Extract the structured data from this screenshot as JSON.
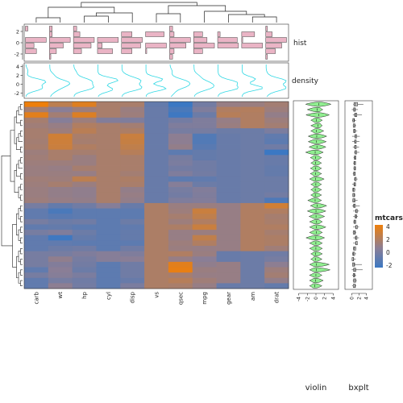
{
  "chart_data": {
    "type": "heatmap",
    "dataset": "mtcars",
    "columns": [
      "carb",
      "wt",
      "hp",
      "cyl",
      "disp",
      "vs",
      "qsec",
      "mpg",
      "gear",
      "am",
      "drat"
    ],
    "rows": [
      [
        3.2,
        1.6,
        2.7,
        1.0,
        1.0,
        -1.0,
        -2.1,
        -0.6,
        0.4,
        0.5,
        0.8
      ],
      [
        0.8,
        0.0,
        0.6,
        1.0,
        0.5,
        -0.9,
        -1.7,
        -0.3,
        1.2,
        1.3,
        0.6
      ],
      [
        2.8,
        0.8,
        2.6,
        1.0,
        0.6,
        -0.9,
        -2.0,
        -0.8,
        1.4,
        1.2,
        0.3
      ],
      [
        0.9,
        -0.1,
        0.6,
        -0.2,
        -0.3,
        -0.9,
        -0.6,
        -0.3,
        0.4,
        1.2,
        0.6
      ],
      [
        0.7,
        0.4,
        1.2,
        1.0,
        0.8,
        -0.9,
        -0.3,
        -0.3,
        0.5,
        1.2,
        0.8
      ],
      [
        0.9,
        0.6,
        1.5,
        1.0,
        1.1,
        -0.9,
        -0.5,
        -0.5,
        -0.8,
        -0.8,
        -0.4
      ],
      [
        0.9,
        2.2,
        1.0,
        1.0,
        2.0,
        -0.9,
        0.1,
        -1.5,
        -0.9,
        -0.8,
        -1.1
      ],
      [
        0.8,
        2.1,
        0.9,
        1.0,
        1.9,
        -0.9,
        0.1,
        -1.5,
        -0.9,
        -0.8,
        -1.2
      ],
      [
        0.9,
        2.0,
        1.2,
        1.0,
        1.7,
        -0.9,
        0.3,
        -1.3,
        -0.9,
        -0.8,
        -0.7
      ],
      [
        0.6,
        1.0,
        0.9,
        1.0,
        1.4,
        -0.9,
        -1.2,
        -1.0,
        -0.9,
        -0.8,
        -2.1
      ],
      [
        0.7,
        1.0,
        0.5,
        1.0,
        1.0,
        -0.9,
        -0.5,
        -1.0,
        -0.9,
        -0.8,
        -0.9
      ],
      [
        0.6,
        0.6,
        0.5,
        1.0,
        1.0,
        -0.9,
        -0.4,
        -0.7,
        -0.9,
        -0.8,
        -0.9
      ],
      [
        0.5,
        0.4,
        0.9,
        1.0,
        1.0,
        -0.9,
        -0.6,
        -0.7,
        -0.9,
        -0.8,
        -1.0
      ],
      [
        0.5,
        0.5,
        0.4,
        1.0,
        0.8,
        -0.9,
        -0.3,
        -0.6,
        -0.9,
        -0.8,
        -1.0
      ],
      [
        0.7,
        0.6,
        1.6,
        1.0,
        1.1,
        -0.9,
        -1.2,
        -1.1,
        -0.9,
        -0.8,
        -0.8
      ],
      [
        0.6,
        0.9,
        0.5,
        1.0,
        1.0,
        -0.9,
        -0.1,
        -0.8,
        -0.9,
        -0.8,
        -0.8
      ],
      [
        0.5,
        0.3,
        0.2,
        1.0,
        0.3,
        -0.9,
        -0.5,
        -0.2,
        -0.9,
        -0.8,
        -0.8
      ],
      [
        0.5,
        0.3,
        0.2,
        1.0,
        0.4,
        -0.9,
        -0.6,
        -0.3,
        -0.9,
        -0.8,
        -0.6
      ],
      [
        0.6,
        0.4,
        0.3,
        1.0,
        0.3,
        -0.9,
        -0.3,
        -0.2,
        -0.9,
        -0.8,
        -1.6
      ],
      [
        -0.5,
        -1.0,
        -0.7,
        -0.1,
        -0.9,
        1.1,
        0.5,
        0.5,
        0.4,
        1.2,
        2.2
      ],
      [
        -1.1,
        -1.7,
        -1.2,
        -1.2,
        -1.2,
        1.1,
        0.6,
        2.0,
        0.4,
        1.2,
        1.2
      ],
      [
        -1.1,
        -1.3,
        -1.2,
        -1.2,
        -1.2,
        1.1,
        0.9,
        1.7,
        0.4,
        1.2,
        0.9
      ],
      [
        -0.5,
        -0.8,
        -0.7,
        -1.2,
        -0.8,
        1.1,
        0.6,
        1.2,
        0.4,
        1.2,
        1.0
      ],
      [
        -1.1,
        -1.0,
        -1.2,
        -1.2,
        -1.1,
        1.1,
        1.1,
        2.0,
        0.4,
        1.2,
        1.2
      ],
      [
        -0.5,
        -0.3,
        -0.8,
        -1.2,
        -1.0,
        1.1,
        0.4,
        0.5,
        0.4,
        1.2,
        0.9
      ],
      [
        -1.1,
        -2.0,
        -1.0,
        -1.2,
        -1.0,
        1.1,
        0.4,
        1.7,
        0.4,
        1.2,
        1.1
      ],
      [
        -1.1,
        -1.1,
        -1.2,
        -1.2,
        -1.2,
        1.1,
        0.6,
        1.2,
        0.4,
        1.2,
        1.1
      ],
      [
        -1.1,
        -0.8,
        -0.7,
        -1.2,
        -0.7,
        1.1,
        0.5,
        0.4,
        0.4,
        1.2,
        0.7
      ],
      [
        -0.5,
        -0.5,
        -0.3,
        -0.1,
        -0.3,
        1.1,
        1.2,
        0.5,
        -0.9,
        -0.8,
        -0.7
      ],
      [
        -0.5,
        0.2,
        -0.5,
        -0.1,
        0.0,
        1.1,
        0.4,
        0.0,
        -0.9,
        -0.8,
        -0.5
      ],
      [
        -0.5,
        -0.2,
        -0.6,
        -1.2,
        -0.7,
        1.1,
        2.8,
        0.2,
        0.4,
        -0.8,
        0.1
      ],
      [
        -1.1,
        0.0,
        -0.8,
        -1.2,
        -0.7,
        1.1,
        3.0,
        0.5,
        0.4,
        -0.8,
        0.6
      ],
      [
        -0.5,
        -0.1,
        -0.4,
        -1.2,
        -0.7,
        1.1,
        0.9,
        0.4,
        0.4,
        -0.8,
        0.8
      ],
      [
        -1.1,
        -0.5,
        -0.7,
        -1.2,
        -0.9,
        1.1,
        1.4,
        0.7,
        0.4,
        -0.8,
        0.3
      ],
      [
        -1.1,
        0.1,
        -0.6,
        -1.2,
        -0.4,
        1.1,
        1.0,
        0.4,
        -0.9,
        -0.8,
        -1.0
      ]
    ],
    "color_scale": {
      "title": "mtcars",
      "ticks": [
        4,
        2,
        0,
        -2
      ],
      "low_color": "#3b78c3",
      "mid_color": "#8a7e96",
      "high_color": "#ee7f0b"
    },
    "column_annotations": [
      {
        "name": "hist",
        "type": "histogram",
        "axis_ticks": [
          2,
          0,
          -2
        ],
        "fill": "#eab4c5"
      },
      {
        "name": "density",
        "type": "density",
        "axis_ticks": [
          4,
          2,
          0,
          -2
        ],
        "stroke": "#30d8e4"
      }
    ],
    "row_annotations": [
      {
        "name": "violin",
        "type": "violin",
        "axis_ticks": [
          -4,
          -2,
          0,
          2,
          4
        ],
        "fill": "#90ee90"
      },
      {
        "name": "bxplt",
        "type": "boxplot",
        "axis_ticks": [
          0,
          2,
          4
        ],
        "fill": "#cccccc"
      }
    ]
  }
}
